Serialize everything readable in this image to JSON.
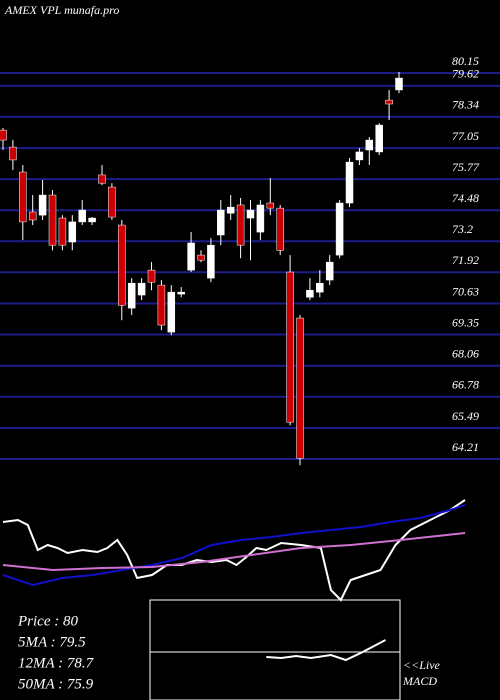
{
  "chart_data": {
    "type": "candlestick",
    "title": "AMEX VPL munafa.pro",
    "ylim": [
      64.21,
      80.15
    ],
    "yticks": [
      80.15,
      79.62,
      78.34,
      77.05,
      75.77,
      74.48,
      73.2,
      71.92,
      70.63,
      69.35,
      68.06,
      66.78,
      65.49,
      64.21
    ],
    "up_color": "#ffffff",
    "down_color": "#cc0000",
    "grid_color": "#1c1c8a",
    "candles": [
      [
        77.79,
        77.88,
        76.97,
        77.38
      ],
      [
        77.09,
        77.38,
        76.14,
        76.56
      ],
      [
        76.06,
        76.35,
        73.25,
        74.0
      ],
      [
        74.41,
        75.11,
        73.87,
        74.08
      ],
      [
        74.28,
        75.73,
        74.08,
        75.11
      ],
      [
        75.11,
        75.32,
        72.83,
        73.04
      ],
      [
        74.16,
        74.28,
        72.83,
        73.04
      ],
      [
        73.17,
        74.28,
        72.83,
        74.0
      ],
      [
        74.0,
        74.9,
        73.87,
        74.49
      ],
      [
        74.0,
        74.2,
        73.87,
        74.16
      ],
      [
        75.94,
        76.35,
        75.52,
        75.6
      ],
      [
        75.44,
        75.6,
        74.08,
        74.2
      ],
      [
        73.87,
        74.08,
        69.94,
        70.56
      ],
      [
        70.44,
        71.68,
        70.15,
        71.47
      ],
      [
        70.98,
        71.68,
        70.77,
        71.47
      ],
      [
        72.01,
        72.34,
        71.18,
        71.51
      ],
      [
        71.39,
        71.6,
        69.53,
        69.74
      ],
      [
        69.45,
        71.39,
        69.32,
        71.1
      ],
      [
        71.02,
        71.31,
        70.89,
        71.1
      ],
      [
        72.01,
        73.58,
        71.93,
        73.13
      ],
      [
        72.63,
        72.83,
        72.34,
        72.42
      ],
      [
        71.68,
        73.33,
        71.51,
        73.04
      ],
      [
        73.46,
        74.9,
        73.04,
        74.49
      ],
      [
        74.36,
        75.11,
        74.08,
        74.61
      ],
      [
        74.7,
        74.99,
        72.5,
        73.04
      ],
      [
        74.16,
        74.9,
        72.42,
        74.49
      ],
      [
        73.58,
        74.9,
        73.25,
        74.7
      ],
      [
        74.78,
        75.81,
        74.28,
        74.57
      ],
      [
        74.57,
        74.7,
        72.63,
        72.83
      ],
      [
        71.93,
        72.63,
        65.6,
        65.73
      ],
      [
        70.03,
        70.15,
        63.95,
        64.24
      ],
      [
        70.89,
        71.68,
        70.77,
        71.18
      ],
      [
        71.1,
        72.01,
        70.89,
        71.47
      ],
      [
        71.6,
        72.63,
        71.39,
        72.34
      ],
      [
        72.63,
        74.9,
        72.5,
        74.78
      ],
      [
        74.78,
        76.64,
        74.61,
        76.47
      ],
      [
        76.56,
        77.05,
        76.35,
        76.89
      ],
      [
        76.97,
        77.51,
        76.35,
        77.38
      ],
      [
        76.89,
        78.08,
        76.76,
        78.0
      ],
      [
        79.03,
        79.45,
        78.21,
        78.87
      ],
      [
        79.45,
        80.19,
        79.32,
        79.94
      ]
    ],
    "indicator_panel": {
      "ylim": [
        0,
        100
      ],
      "xlim": [
        0,
        46.5
      ],
      "series": [
        {
          "color": "#ffffff",
          "x": [
            0,
            1.5,
            2.5,
            3.5,
            4.5,
            5.5,
            6.5,
            8,
            9.5,
            10.5,
            11.5,
            12.5,
            13.5,
            15,
            16.5,
            18,
            19.5,
            21,
            22.5,
            23.5,
            24.5,
            25.5,
            26.5,
            28,
            30,
            32,
            33,
            34,
            35,
            36.5,
            38,
            39.5,
            41,
            43,
            45,
            46.5
          ],
          "values": [
            78,
            80,
            75,
            50,
            55,
            52,
            47,
            50,
            48,
            52,
            60,
            45,
            22,
            25,
            35,
            35,
            40,
            38,
            40,
            35,
            43,
            52,
            50,
            57,
            55,
            52,
            10,
            0,
            20,
            25,
            30,
            55,
            70,
            80,
            90,
            100
          ]
        },
        {
          "color": "#1010c8",
          "x": [
            0,
            3,
            6,
            9,
            12,
            15,
            18,
            21,
            24,
            27,
            30,
            33,
            36,
            39,
            42,
            45,
            46.5
          ],
          "values": [
            25,
            15,
            22,
            25,
            30,
            35,
            42,
            55,
            60,
            63,
            67,
            70,
            73,
            78,
            82,
            90,
            95
          ]
        },
        {
          "color": "#d070d0",
          "x": [
            0,
            5,
            10,
            15,
            20,
            25,
            30,
            35,
            40,
            46.5
          ],
          "values": [
            35,
            30,
            32,
            33,
            38,
            45,
            52,
            55,
            60,
            67
          ]
        }
      ]
    },
    "macd_panel": {
      "ylim": [
        0,
        100
      ],
      "xlim": [
        0,
        46.5
      ],
      "label": "<<Live MACD",
      "series": [
        {
          "color": "#ffffff",
          "x": [
            26.5,
            28,
            29.5,
            31,
            33,
            34.5,
            36,
            38.5
          ],
          "values": [
            43,
            42,
            44,
            42,
            45,
            40,
            47,
            60
          ]
        }
      ]
    },
    "info": [
      "Price  : 80",
      "5MA : 79.5",
      "12MA : 78.7",
      "50MA : 75.9"
    ]
  }
}
